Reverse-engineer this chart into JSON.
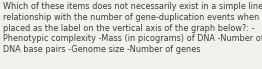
{
  "lines": [
    "Which of these items does not necessarily exist in a simple linear",
    "relationship with the number of gene-duplication events when",
    "placed as the label on the vertical axis of the graph below?: -",
    "Phenotypic complexity -Mass (in picograms) of DNA -Number of",
    "DNA base pairs -Genome size -Number of genes"
  ],
  "background_color": "#f2f2ec",
  "text_color": "#3c3c3c",
  "font_size": 5.9,
  "fig_width": 2.62,
  "fig_height": 0.69,
  "dpi": 100
}
